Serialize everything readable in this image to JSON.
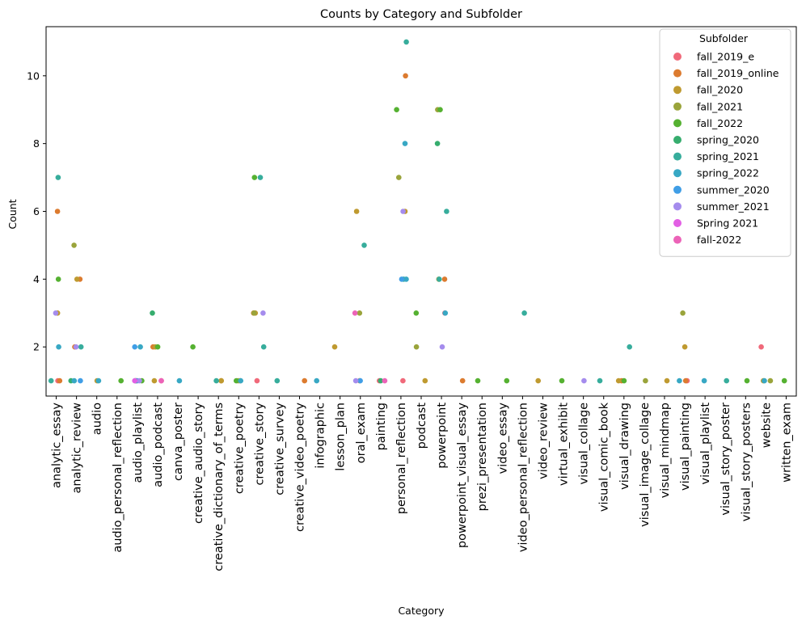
{
  "chart_data": {
    "type": "scatter",
    "title": "Counts by Category and Subfolder",
    "xlabel": "Category",
    "ylabel": "Count",
    "ylim": [
      0.55,
      11.45
    ],
    "yticks": [
      2,
      4,
      6,
      8,
      10
    ],
    "grid": false,
    "legend": {
      "title": "Subfolder",
      "placement": "top-right"
    },
    "categories": [
      "analytic_essay",
      "analytic_review",
      "audio",
      "audio_personal_reflection",
      "audio_playlist",
      "audio_podcast",
      "canva_poster",
      "creative_audio_story",
      "creative_dictionary_of_terms",
      "creative_poetry",
      "creative_story",
      "creative_survey",
      "creative_video_poetry",
      "infographic",
      "lesson_plan",
      "oral_exam",
      "painting",
      "personal_reflection",
      "podcast",
      "powerpoint",
      "powerpoint_visual_essay",
      "prezi_presentation",
      "video_essay",
      "video_personal_reflection",
      "video_review",
      "virtual_exhibit",
      "visual_collage",
      "visual_comic_book",
      "visual_drawing",
      "visual_image_collage",
      "visual_mindmap",
      "visual_painting",
      "visual_playlist",
      "visual_story_poster",
      "visual_story_posters",
      "website",
      "written_exam"
    ],
    "series": [
      {
        "name": "fall_2019_e",
        "color": "#f0697a",
        "points": [
          [
            "analytic_essay",
            1
          ],
          [
            "audio_playlist",
            1
          ],
          [
            "audio_podcast",
            1
          ],
          [
            "creative_story",
            1
          ],
          [
            "painting",
            1
          ],
          [
            "personal_reflection",
            1
          ],
          [
            "powerpoint",
            3
          ],
          [
            "visual_painting",
            1
          ],
          [
            "website",
            2
          ]
        ]
      },
      {
        "name": "fall_2019_online",
        "color": "#dc7b2f",
        "points": [
          [
            "analytic_essay",
            6
          ],
          [
            "analytic_essay",
            1
          ],
          [
            "analytic_review",
            2
          ],
          [
            "analytic_review",
            4
          ],
          [
            "audio_podcast",
            2
          ],
          [
            "creative_dictionary_of_terms",
            1
          ],
          [
            "creative_poetry",
            1
          ],
          [
            "creative_story",
            3
          ],
          [
            "creative_video_poetry",
            1
          ],
          [
            "oral_exam",
            1
          ],
          [
            "personal_reflection",
            10
          ],
          [
            "powerpoint",
            4
          ],
          [
            "powerpoint_visual_essay",
            1
          ],
          [
            "visual_drawing",
            1
          ],
          [
            "visual_painting",
            1
          ]
        ]
      },
      {
        "name": "fall_2020",
        "color": "#bf9a30",
        "points": [
          [
            "analytic_essay",
            3
          ],
          [
            "analytic_review",
            4
          ],
          [
            "audio",
            1
          ],
          [
            "audio_podcast",
            2
          ],
          [
            "audio_podcast",
            1
          ],
          [
            "creative_dictionary_of_terms",
            1
          ],
          [
            "creative_poetry",
            1
          ],
          [
            "creative_story",
            3
          ],
          [
            "lesson_plan",
            2
          ],
          [
            "oral_exam",
            6
          ],
          [
            "personal_reflection",
            6
          ],
          [
            "podcast",
            1
          ],
          [
            "powerpoint",
            4
          ],
          [
            "video_review",
            1
          ],
          [
            "visual_drawing",
            1
          ],
          [
            "visual_mindmap",
            1
          ],
          [
            "visual_painting",
            2
          ],
          [
            "website",
            1
          ]
        ]
      },
      {
        "name": "fall_2021",
        "color": "#9aa43b",
        "points": [
          [
            "analytic_review",
            5
          ],
          [
            "creative_story",
            3
          ],
          [
            "oral_exam",
            3
          ],
          [
            "personal_reflection",
            7
          ],
          [
            "podcast",
            2
          ],
          [
            "powerpoint",
            9
          ],
          [
            "visual_image_collage",
            1
          ],
          [
            "visual_painting",
            3
          ],
          [
            "website",
            1
          ]
        ]
      },
      {
        "name": "fall_2022",
        "color": "#55b131",
        "points": [
          [
            "analytic_essay",
            4
          ],
          [
            "audio_personal_reflection",
            1
          ],
          [
            "audio_playlist",
            1
          ],
          [
            "audio_podcast",
            2
          ],
          [
            "creative_audio_story",
            2
          ],
          [
            "creative_poetry",
            1
          ],
          [
            "creative_story",
            7
          ],
          [
            "personal_reflection",
            9
          ],
          [
            "podcast",
            3
          ],
          [
            "powerpoint",
            9
          ],
          [
            "prezi_presentation",
            1
          ],
          [
            "video_essay",
            1
          ],
          [
            "virtual_exhibit",
            1
          ],
          [
            "visual_drawing",
            1
          ],
          [
            "visual_story_posters",
            1
          ],
          [
            "written_exam",
            1
          ]
        ]
      },
      {
        "name": "spring_2020",
        "color": "#36ad6e",
        "points": [
          [
            "analytic_review",
            1
          ],
          [
            "audio_podcast",
            3
          ],
          [
            "painting",
            1
          ],
          [
            "powerpoint",
            8
          ]
        ]
      },
      {
        "name": "spring_2021",
        "color": "#37ad9c",
        "points": [
          [
            "analytic_essay",
            7
          ],
          [
            "analytic_essay",
            1
          ],
          [
            "analytic_review",
            2
          ],
          [
            "audio_playlist",
            1
          ],
          [
            "creative_dictionary_of_terms",
            1
          ],
          [
            "creative_story",
            7
          ],
          [
            "creative_story",
            2
          ],
          [
            "creative_survey",
            1
          ],
          [
            "oral_exam",
            5
          ],
          [
            "personal_reflection",
            11
          ],
          [
            "personal_reflection",
            4
          ],
          [
            "powerpoint",
            6
          ],
          [
            "powerpoint",
            4
          ],
          [
            "video_personal_reflection",
            3
          ],
          [
            "visual_comic_book",
            1
          ],
          [
            "visual_drawing",
            2
          ],
          [
            "visual_story_poster",
            1
          ]
        ]
      },
      {
        "name": "spring_2022",
        "color": "#38a8c4",
        "points": [
          [
            "analytic_essay",
            2
          ],
          [
            "analytic_review",
            1
          ],
          [
            "audio",
            1
          ],
          [
            "audio_playlist",
            2
          ],
          [
            "audio_playlist",
            1
          ],
          [
            "canva_poster",
            1
          ],
          [
            "creative_poetry",
            1
          ],
          [
            "infographic",
            1
          ],
          [
            "personal_reflection",
            8
          ],
          [
            "personal_reflection",
            4
          ],
          [
            "powerpoint",
            3
          ],
          [
            "visual_painting",
            1
          ],
          [
            "visual_playlist",
            1
          ],
          [
            "website",
            1
          ]
        ]
      },
      {
        "name": "summer_2020",
        "color": "#409ee6",
        "points": [
          [
            "analytic_review",
            1
          ],
          [
            "audio_playlist",
            2
          ],
          [
            "oral_exam",
            1
          ],
          [
            "personal_reflection",
            4
          ]
        ]
      },
      {
        "name": "summer_2021",
        "color": "#a58ced",
        "points": [
          [
            "analytic_essay",
            3
          ],
          [
            "analytic_review",
            2
          ],
          [
            "audio_playlist",
            1
          ],
          [
            "creative_story",
            3
          ],
          [
            "oral_exam",
            1
          ],
          [
            "personal_reflection",
            6
          ],
          [
            "powerpoint",
            2
          ],
          [
            "visual_collage",
            1
          ]
        ]
      },
      {
        "name": "Spring 2021",
        "color": "#e25fe4",
        "points": [
          [
            "audio_playlist",
            1
          ]
        ]
      },
      {
        "name": "fall-2022",
        "color": "#ec63b8",
        "points": [
          [
            "audio_podcast",
            1
          ],
          [
            "oral_exam",
            3
          ],
          [
            "painting",
            1
          ]
        ]
      }
    ]
  }
}
